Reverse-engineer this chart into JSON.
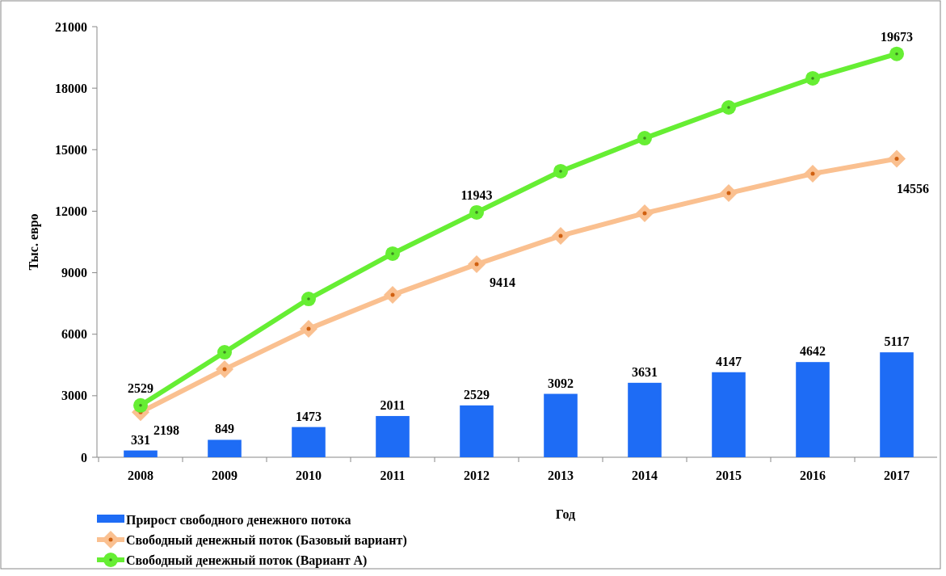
{
  "chart_data": {
    "type": "bar",
    "xlabel": "Год",
    "ylabel": "Тыс. евро",
    "categories": [
      "2008",
      "2009",
      "2010",
      "2011",
      "2012",
      "2013",
      "2014",
      "2015",
      "2016",
      "2017"
    ],
    "ylim": [
      0,
      21000
    ],
    "yticks": [
      0,
      3000,
      6000,
      9000,
      12000,
      15000,
      18000,
      21000
    ],
    "grid": false,
    "legend": "bottom left",
    "series": [
      {
        "name": "Прирост  свободного денежного потока",
        "color": "#1e6cf5",
        "values": [
          331,
          849,
          1473,
          2011,
          2529,
          3092,
          3631,
          4147,
          4642,
          5117
        ],
        "value_labels": [
          "331",
          "849",
          "1473",
          "2011",
          "2529",
          "3092",
          "3631",
          "4147",
          "4642",
          "5117"
        ]
      },
      {
        "name": "Свободный денежный поток (Базовый вариант)",
        "type": "line",
        "color": "#fac090",
        "marker": "diamond",
        "values": [
          2198,
          4290,
          6260,
          7920,
          9414,
          10800,
          11900,
          12880,
          13830,
          14556
        ],
        "value_labels": [
          "2198",
          null,
          null,
          null,
          "9414",
          null,
          null,
          null,
          null,
          "14556"
        ]
      },
      {
        "name": "Свободный денежный поток (Вариант  А)",
        "type": "line",
        "color": "#66ee33",
        "marker": "circle",
        "values": [
          2529,
          5120,
          7720,
          9930,
          11943,
          13950,
          15560,
          17060,
          18480,
          19673
        ],
        "value_labels": [
          "2529",
          null,
          null,
          null,
          "11943",
          null,
          null,
          null,
          null,
          "19673"
        ]
      }
    ]
  }
}
